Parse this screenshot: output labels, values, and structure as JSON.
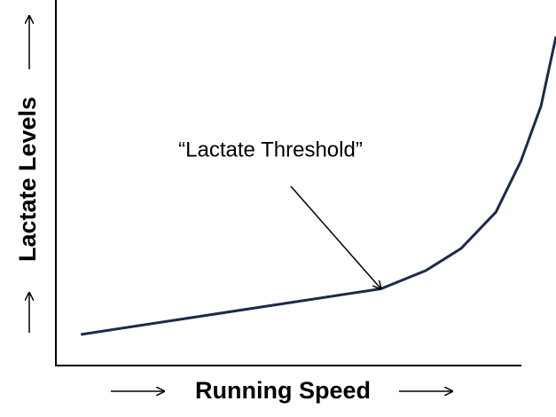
{
  "chart_data": {
    "type": "line",
    "xlabel": "Running Speed",
    "ylabel": "Lactate Levels",
    "annotation": "“Lactate Threshold”",
    "x": [
      0.5,
      6.5,
      7.4,
      8.1,
      8.8,
      9.3,
      9.7,
      10
    ],
    "series": [
      {
        "color": "#1c2a4a",
        "values": [
          0.85,
          2.1,
          2.6,
          3.2,
          4.2,
          5.6,
          7.1,
          9.0
        ]
      }
    ],
    "xlim": [
      0,
      10
    ],
    "ylim": [
      0,
      10
    ]
  }
}
